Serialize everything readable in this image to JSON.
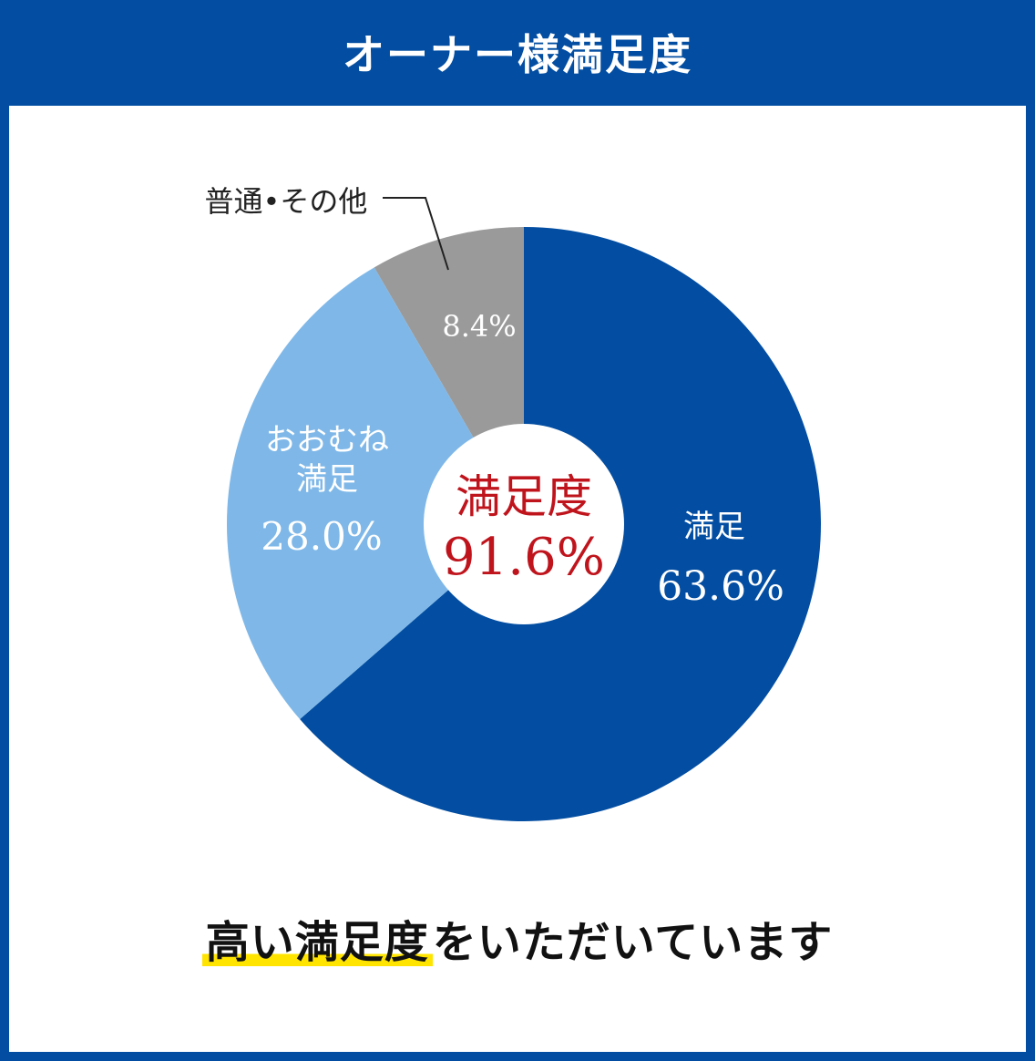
{
  "header": {
    "title": "オーナー様満足度"
  },
  "chart_data": {
    "type": "pie",
    "categories": [
      "満足",
      "おおむね満足",
      "普通•その他"
    ],
    "values": [
      63.6,
      28.0,
      8.4
    ],
    "value_labels": [
      "63.6%",
      "28.0%",
      "8.4%"
    ],
    "label_lines": [
      [
        "満足"
      ],
      [
        "おおむね",
        "満足"
      ],
      [
        "普通•その他"
      ]
    ],
    "colors": [
      "#034ea2",
      "#7fb8e8",
      "#9a9a9a"
    ],
    "center": {
      "title": "満足度",
      "value": "91.6%",
      "color": "#c0141d"
    }
  },
  "footer": {
    "highlight": "高い満足度",
    "rest": "をいただいています",
    "highlight_color": "#ffe400"
  }
}
